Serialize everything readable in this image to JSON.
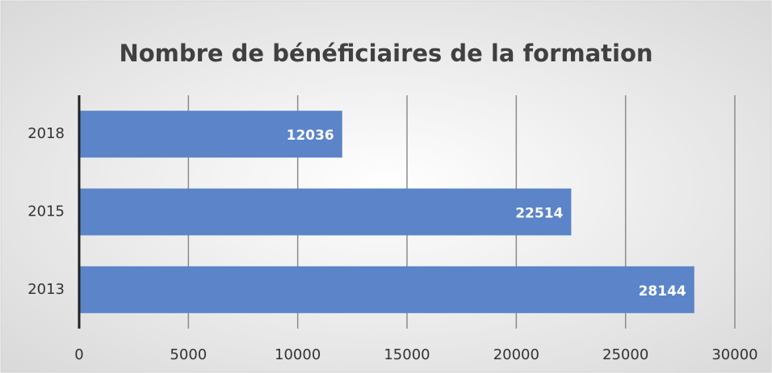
{
  "chart_data": {
    "type": "bar",
    "orientation": "horizontal",
    "title": "Nombre de bénéficiaires de la formation",
    "categories": [
      "2018",
      "2015",
      "2013"
    ],
    "values": [
      12036,
      22514,
      28144
    ],
    "color": "#5b84c9",
    "xlim": [
      0,
      30000
    ],
    "xticks": [
      0,
      5000,
      10000,
      15000,
      20000,
      25000,
      30000
    ],
    "grid": true
  }
}
